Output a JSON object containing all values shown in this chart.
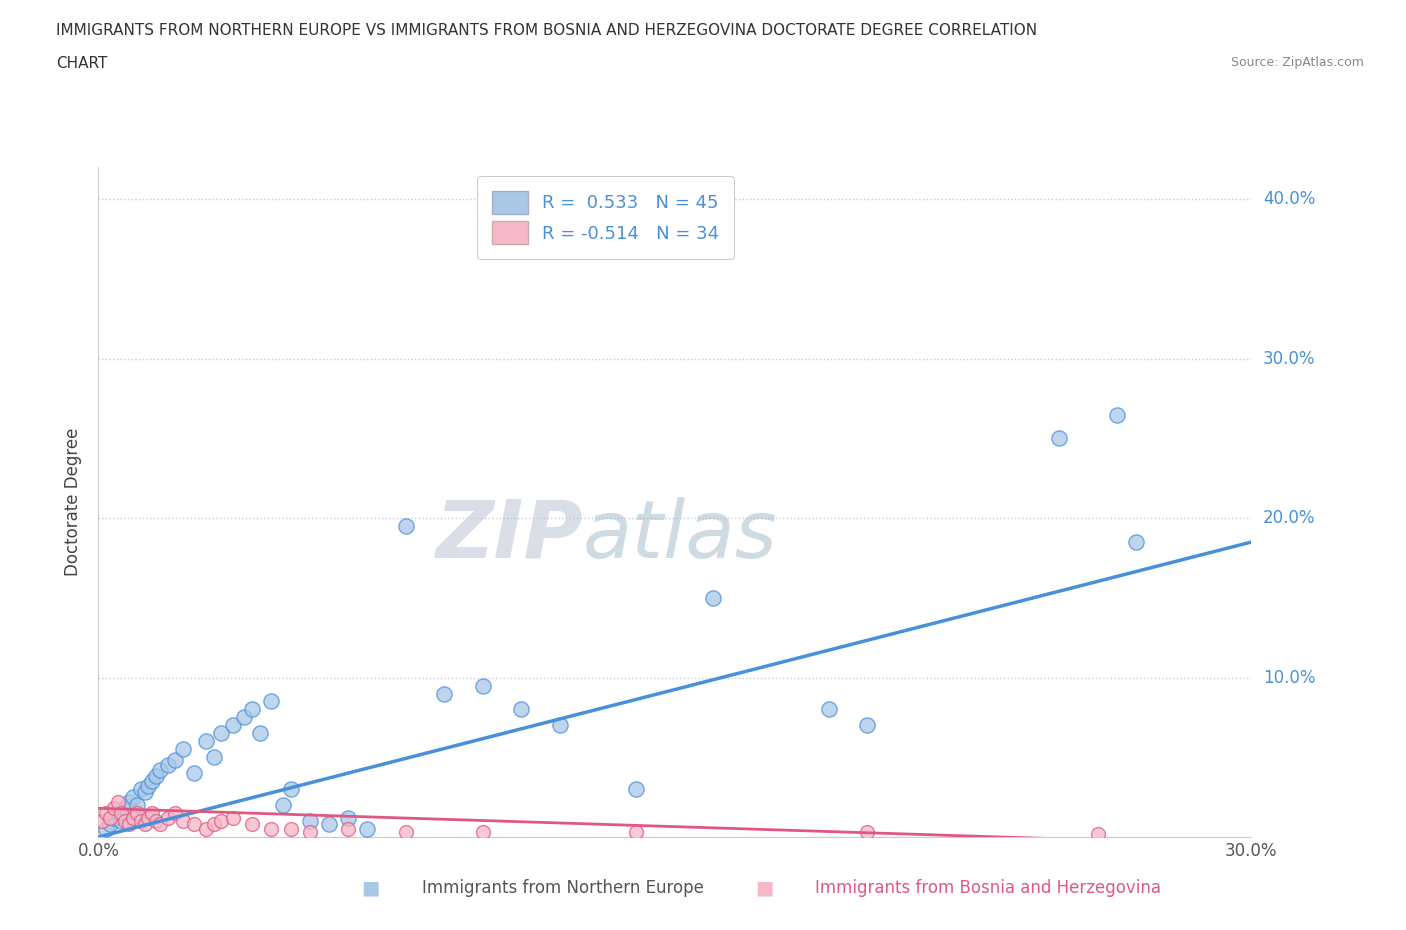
{
  "title_line1": "IMMIGRANTS FROM NORTHERN EUROPE VS IMMIGRANTS FROM BOSNIA AND HERZEGOVINA DOCTORATE DEGREE CORRELATION",
  "title_line2": "CHART",
  "source_text": "Source: ZipAtlas.com",
  "ylabel": "Doctorate Degree",
  "x_label_bottom_blue": "Immigrants from Northern Europe",
  "x_label_bottom_pink": "Immigrants from Bosnia and Herzegovina",
  "xlim": [
    0.0,
    0.3
  ],
  "ylim": [
    0.0,
    0.42
  ],
  "x_ticks": [
    0.0,
    0.05,
    0.1,
    0.15,
    0.2,
    0.25,
    0.3
  ],
  "x_tick_labels": [
    "0.0%",
    "",
    "",
    "",
    "",
    "",
    "30.0%"
  ],
  "y_ticks": [
    0.0,
    0.1,
    0.2,
    0.3,
    0.4
  ],
  "y_tick_labels": [
    "",
    "10.0%",
    "20.0%",
    "30.0%",
    "40.0%"
  ],
  "blue_color": "#a8c8e8",
  "pink_color": "#f4b8c8",
  "blue_line_color": "#4a90d9",
  "pink_line_color": "#e05880",
  "R_blue": 0.533,
  "N_blue": 45,
  "R_pink": -0.514,
  "N_pink": 34,
  "watermark_zip": "ZIP",
  "watermark_atlas": "atlas",
  "background_color": "#ffffff",
  "grid_color": "#c8c8d8",
  "blue_scatter_x": [
    0.002,
    0.003,
    0.004,
    0.005,
    0.006,
    0.007,
    0.008,
    0.009,
    0.01,
    0.011,
    0.012,
    0.013,
    0.014,
    0.015,
    0.016,
    0.018,
    0.02,
    0.022,
    0.025,
    0.028,
    0.03,
    0.032,
    0.035,
    0.038,
    0.04,
    0.042,
    0.045,
    0.048,
    0.05,
    0.055,
    0.06,
    0.065,
    0.07,
    0.08,
    0.09,
    0.1,
    0.11,
    0.12,
    0.14,
    0.16,
    0.19,
    0.2,
    0.25,
    0.265,
    0.27
  ],
  "blue_scatter_y": [
    0.005,
    0.008,
    0.012,
    0.015,
    0.01,
    0.018,
    0.022,
    0.025,
    0.02,
    0.03,
    0.028,
    0.032,
    0.035,
    0.038,
    0.042,
    0.045,
    0.048,
    0.055,
    0.04,
    0.06,
    0.05,
    0.065,
    0.07,
    0.075,
    0.08,
    0.065,
    0.085,
    0.02,
    0.03,
    0.01,
    0.008,
    0.012,
    0.005,
    0.195,
    0.09,
    0.095,
    0.08,
    0.07,
    0.03,
    0.15,
    0.08,
    0.07,
    0.25,
    0.265,
    0.185
  ],
  "pink_scatter_x": [
    0.001,
    0.002,
    0.003,
    0.004,
    0.005,
    0.006,
    0.007,
    0.008,
    0.009,
    0.01,
    0.011,
    0.012,
    0.013,
    0.014,
    0.015,
    0.016,
    0.018,
    0.02,
    0.022,
    0.025,
    0.028,
    0.03,
    0.032,
    0.035,
    0.04,
    0.045,
    0.05,
    0.055,
    0.065,
    0.08,
    0.1,
    0.14,
    0.2,
    0.26
  ],
  "pink_scatter_y": [
    0.01,
    0.015,
    0.012,
    0.018,
    0.022,
    0.015,
    0.01,
    0.008,
    0.012,
    0.015,
    0.01,
    0.008,
    0.012,
    0.015,
    0.01,
    0.008,
    0.012,
    0.015,
    0.01,
    0.008,
    0.005,
    0.008,
    0.01,
    0.012,
    0.008,
    0.005,
    0.005,
    0.003,
    0.005,
    0.003,
    0.003,
    0.003,
    0.003,
    0.002
  ],
  "blue_trend_x0": 0.0,
  "blue_trend_y0": 0.0,
  "blue_trend_x1": 0.3,
  "blue_trend_y1": 0.185,
  "pink_trend_x0": 0.0,
  "pink_trend_y0": 0.018,
  "pink_trend_x1": 0.3,
  "pink_trend_y1": -0.005
}
